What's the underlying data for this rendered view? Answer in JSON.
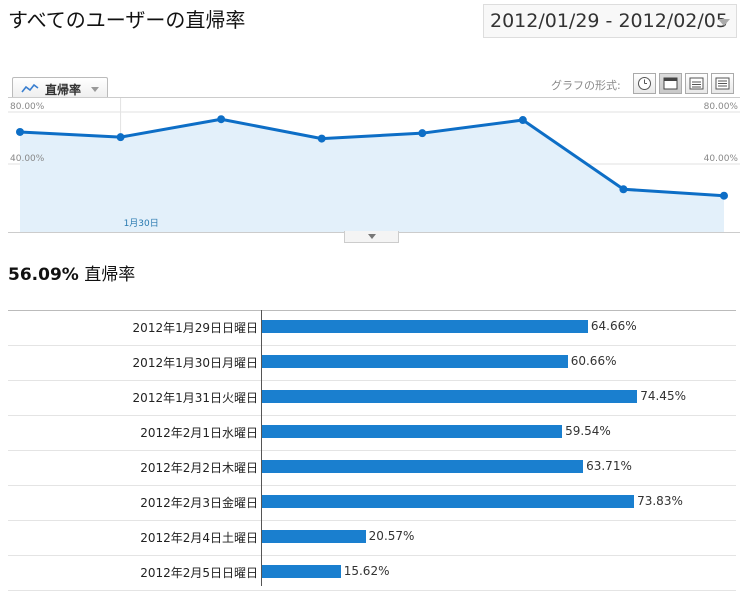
{
  "header": {
    "title": "すべてのユーザーの直帰率",
    "date_range": "2012/01/29 - 2012/02/05"
  },
  "graph_controls": {
    "metric_tab": "直帰率",
    "format_label": "グラフの形式:",
    "format_buttons": [
      "clock-icon",
      "motion-chart-icon",
      "table-icon",
      "list-icon"
    ],
    "active_format": "motion-chart-icon"
  },
  "chart_data": {
    "type": "area",
    "x": [
      "2012-01-29",
      "2012-01-30",
      "2012-01-31",
      "2012-02-01",
      "2012-02-02",
      "2012-02-03",
      "2012-02-04",
      "2012-02-05"
    ],
    "y": [
      64.66,
      60.66,
      74.45,
      59.54,
      63.71,
      73.83,
      20.57,
      15.62
    ],
    "y_tick_labels": [
      "80.00%",
      "40.00%"
    ],
    "y_ticks": [
      80,
      40
    ],
    "ylim": [
      0,
      100
    ],
    "x_tick_labels": [
      "1月30日"
    ],
    "line_color": "#0d6ec6",
    "fill_color": "#e3f0fa",
    "grid": true
  },
  "summary": {
    "value": "56.09%",
    "label": "直帰率"
  },
  "table": {
    "rows": [
      {
        "date": "2012年1月29日日曜日",
        "value": 64.66,
        "label": "64.66%"
      },
      {
        "date": "2012年1月30日月曜日",
        "value": 60.66,
        "label": "60.66%"
      },
      {
        "date": "2012年1月31日火曜日",
        "value": 74.45,
        "label": "74.45%"
      },
      {
        "date": "2012年2月1日水曜日",
        "value": 59.54,
        "label": "59.54%"
      },
      {
        "date": "2012年2月2日木曜日",
        "value": 63.71,
        "label": "63.71%"
      },
      {
        "date": "2012年2月3日金曜日",
        "value": 73.83,
        "label": "73.83%"
      },
      {
        "date": "2012年2月4日土曜日",
        "value": 20.57,
        "label": "20.57%"
      },
      {
        "date": "2012年2月5日日曜日",
        "value": 15.62,
        "label": "15.62%"
      }
    ],
    "bar_color": "#1a7fcf"
  }
}
